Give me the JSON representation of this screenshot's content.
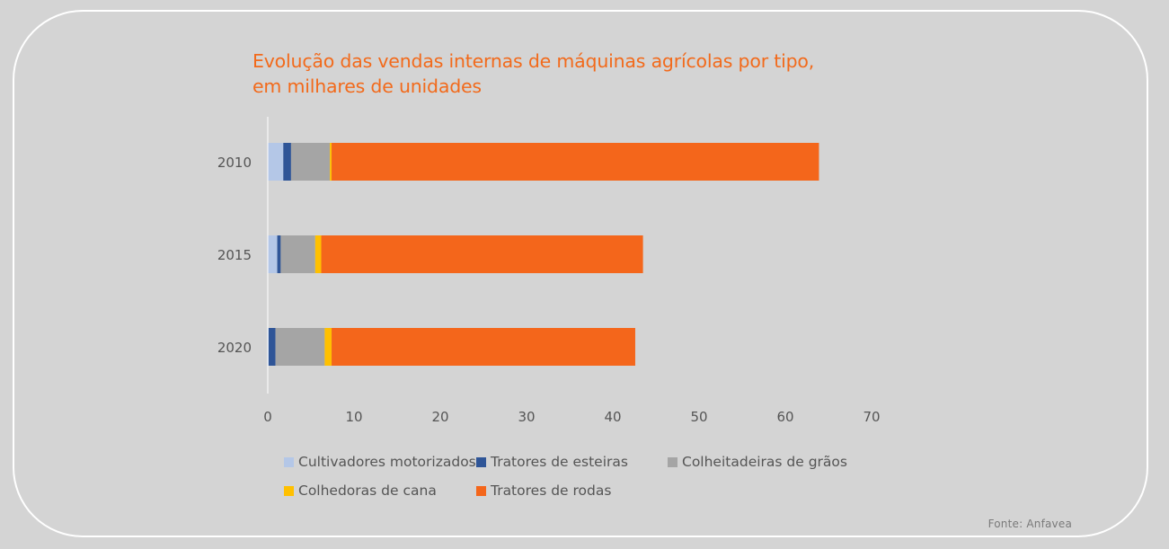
{
  "title_line1": "Evolução das vendas internas de máquinas agrícolas por tipo,",
  "title_line2": "em milhares de unidades",
  "source": "Fonte:  Anfavea",
  "colors": {
    "background": "#d4d4d4",
    "title": "#f26a1b",
    "axis_text": "#555555"
  },
  "chart_data": {
    "type": "bar",
    "orientation": "horizontal",
    "stacked": true,
    "categories": [
      "2010",
      "2015",
      "2020"
    ],
    "series": [
      {
        "name": "Cultivadores motorizados",
        "color": "#b4c7e7",
        "values": [
          1.8,
          1.1,
          0.1
        ]
      },
      {
        "name": "Tratores de esteiras",
        "color": "#2f5597",
        "values": [
          0.9,
          0.4,
          0.8
        ]
      },
      {
        "name": "Colheitadeiras de grãos",
        "color": "#a5a5a5",
        "values": [
          4.5,
          4.0,
          5.7
        ]
      },
      {
        "name": "Colhedoras de cana",
        "color": "#ffc000",
        "values": [
          0.2,
          0.7,
          0.8
        ]
      },
      {
        "name": "Tratores de rodas",
        "color": "#f4661b",
        "values": [
          56.5,
          37.3,
          35.2
        ]
      }
    ],
    "xlim": [
      0,
      70
    ],
    "xticks": [
      "0",
      "10",
      "20",
      "30",
      "40",
      "50",
      "60",
      "70"
    ],
    "grid": false,
    "legend_position": "bottom"
  }
}
